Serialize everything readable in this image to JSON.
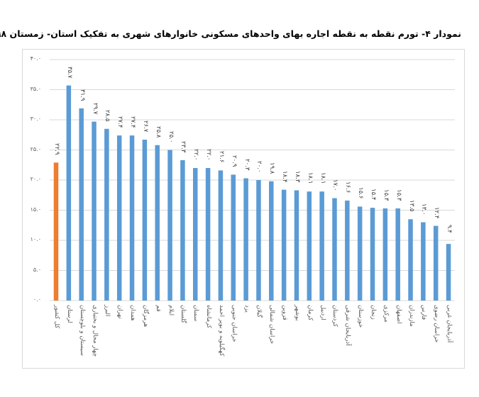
{
  "title": "نمودار ۴- تورم نقطه به نقطه  اجاره بهای واحدهای مسکونی خانوارهای شهری به تفکیک استان- زمستان ۱۳۹۸",
  "colors": {
    "highlight": "#ED7D31",
    "bars": "#5B9BD5",
    "grid": "#d9d9d9",
    "axis_text": "#595959"
  },
  "y_ticks": [
    "۰.۰",
    "۵.۰",
    "۱۰.۰",
    "۱۵.۰",
    "۲۰.۰",
    "۲۵.۰",
    "۳۰.۰",
    "۳۵.۰",
    "۴۰.۰"
  ],
  "chart_data": {
    "type": "bar",
    "title": "نمودار ۴- تورم نقطه به نقطه  اجاره بهای واحدهای مسکونی خانوارهای شهری به تفکیک استان- زمستان ۱۳۹۸",
    "xlabel": "",
    "ylabel": "",
    "ylim": [
      0,
      40
    ],
    "yticks": [
      0,
      5,
      10,
      15,
      20,
      25,
      30,
      35,
      40
    ],
    "grid": true,
    "legend": null,
    "categories": [
      "کل کشور",
      "لرستان",
      "سیستان و بلوچستان",
      "چهار محال و بختیاری",
      "البرز",
      "تهران",
      "همدان",
      "هرمزگان",
      "قم",
      "ایلام",
      "گلستان",
      "سمنان",
      "کرمانشاه",
      "کهگیلویه و بویر احمد",
      "خراسان جنوبی",
      "یزد",
      "گیلان",
      "خراسان شمالی",
      "قزوین",
      "بوشهر",
      "کرمان",
      "اردبیل",
      "کردستان",
      "آذربایجان شرقی",
      "خوزستان",
      "زنجان",
      "مرکزی",
      "اصفهان",
      "مازندران",
      "فارس",
      "خراسان رضوی",
      "آذربایجان غربی"
    ],
    "values": [
      22.9,
      35.7,
      31.9,
      29.7,
      28.5,
      27.4,
      27.4,
      26.7,
      25.8,
      25.0,
      23.3,
      22.0,
      22.0,
      21.6,
      20.9,
      20.3,
      20.0,
      19.8,
      18.4,
      18.3,
      18.1,
      18.1,
      17.0,
      16.6,
      15.6,
      15.4,
      15.3,
      15.3,
      13.5,
      13.0,
      12.4,
      9.4
    ],
    "value_labels": [
      "۲۲.۹",
      "۳۵.۷",
      "۳۱.۹",
      "۲۹.۷",
      "۲۸.۵",
      "۲۷.۴",
      "۲۷.۴",
      "۲۶.۷",
      "۲۵.۸",
      "۲۵.۰",
      "۲۳.۳",
      "۲۲.۰",
      "۲۲.۰",
      "۲۱.۶",
      "۲۰.۹",
      "۲۰.۳",
      "۲۰.۰",
      "۱۹.۸",
      "۱۸.۴",
      "۱۸.۳",
      "۱۸.۱",
      "۱۸.۱",
      "۱۷.۰",
      "۱۶.۶",
      "۱۵.۶",
      "۱۵.۴",
      "۱۵.۳",
      "۱۵.۳",
      "۱۳.۵",
      "۱۳.۰",
      "۱۲.۴",
      "۹.۴"
    ],
    "highlight_index": 0
  }
}
